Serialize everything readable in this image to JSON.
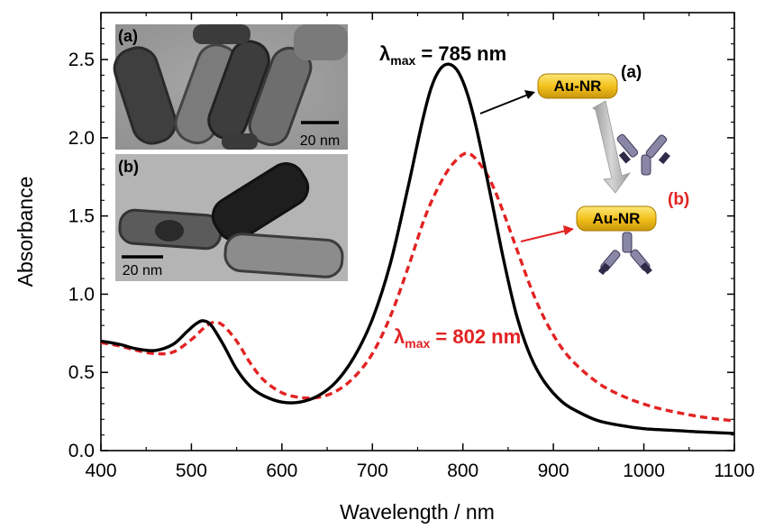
{
  "chart_data": {
    "type": "line",
    "xlabel": "Wavelength / nm",
    "ylabel": "Absorbance",
    "xlim": [
      400,
      1100
    ],
    "ylim": [
      0.0,
      2.8
    ],
    "x_ticks": [
      "400",
      "500",
      "600",
      "700",
      "800",
      "900",
      "1000",
      "1100"
    ],
    "y_ticks": [
      "0.0",
      "0.5",
      "1.0",
      "1.5",
      "2.0",
      "2.5"
    ],
    "grid": false,
    "series": [
      {
        "name": "(a)",
        "color": "#000000",
        "style": "solid",
        "points": [
          [
            400,
            0.7
          ],
          [
            420,
            0.68
          ],
          [
            440,
            0.65
          ],
          [
            460,
            0.64
          ],
          [
            480,
            0.68
          ],
          [
            495,
            0.76
          ],
          [
            505,
            0.81
          ],
          [
            513,
            0.83
          ],
          [
            522,
            0.8
          ],
          [
            535,
            0.68
          ],
          [
            550,
            0.52
          ],
          [
            565,
            0.41
          ],
          [
            580,
            0.35
          ],
          [
            600,
            0.31
          ],
          [
            620,
            0.31
          ],
          [
            640,
            0.35
          ],
          [
            660,
            0.44
          ],
          [
            680,
            0.6
          ],
          [
            700,
            0.84
          ],
          [
            720,
            1.2
          ],
          [
            740,
            1.7
          ],
          [
            755,
            2.1
          ],
          [
            765,
            2.32
          ],
          [
            775,
            2.44
          ],
          [
            785,
            2.47
          ],
          [
            795,
            2.42
          ],
          [
            805,
            2.28
          ],
          [
            815,
            2.06
          ],
          [
            830,
            1.65
          ],
          [
            845,
            1.22
          ],
          [
            860,
            0.85
          ],
          [
            875,
            0.6
          ],
          [
            890,
            0.44
          ],
          [
            910,
            0.31
          ],
          [
            930,
            0.24
          ],
          [
            950,
            0.19
          ],
          [
            975,
            0.16
          ],
          [
            1000,
            0.14
          ],
          [
            1030,
            0.13
          ],
          [
            1060,
            0.12
          ],
          [
            1100,
            0.11
          ]
        ]
      },
      {
        "name": "(b)",
        "color": "#e32222",
        "style": "dashed",
        "points": [
          [
            400,
            0.69
          ],
          [
            420,
            0.67
          ],
          [
            440,
            0.64
          ],
          [
            460,
            0.62
          ],
          [
            480,
            0.63
          ],
          [
            500,
            0.71
          ],
          [
            515,
            0.79
          ],
          [
            525,
            0.82
          ],
          [
            535,
            0.8
          ],
          [
            550,
            0.7
          ],
          [
            565,
            0.56
          ],
          [
            580,
            0.45
          ],
          [
            600,
            0.37
          ],
          [
            620,
            0.34
          ],
          [
            640,
            0.34
          ],
          [
            660,
            0.38
          ],
          [
            680,
            0.47
          ],
          [
            700,
            0.62
          ],
          [
            720,
            0.86
          ],
          [
            740,
            1.18
          ],
          [
            760,
            1.52
          ],
          [
            780,
            1.76
          ],
          [
            795,
            1.87
          ],
          [
            805,
            1.9
          ],
          [
            815,
            1.86
          ],
          [
            830,
            1.73
          ],
          [
            845,
            1.52
          ],
          [
            860,
            1.28
          ],
          [
            880,
            0.97
          ],
          [
            900,
            0.74
          ],
          [
            920,
            0.58
          ],
          [
            950,
            0.43
          ],
          [
            980,
            0.34
          ],
          [
            1010,
            0.28
          ],
          [
            1040,
            0.24
          ],
          [
            1070,
            0.21
          ],
          [
            1100,
            0.19
          ]
        ]
      }
    ],
    "annotations": {
      "lambda_a_sym": "λ",
      "lambda_a_sub": "max",
      "lambda_a_value": " = 785 nm",
      "lambda_b_sym": "λ",
      "lambda_b_sub": "max",
      "lambda_b_value": " = 802 nm"
    }
  },
  "inset": {
    "tem_a_label": "(a)",
    "tem_a_scale": "20 nm",
    "tem_b_label": "(b)",
    "tem_b_scale": "20 nm"
  },
  "schematic": {
    "rod_a_text": "Au-NR",
    "rod_a_tag": "(a)",
    "rod_b_text": "Au-NR",
    "rod_b_tag": "(b)"
  },
  "colors": {
    "series_a": "#000000",
    "series_b": "#e32222",
    "rod_fill": "#f3c21d",
    "antibody": "#8a86a6",
    "arrow_grey": "#b3b3b3"
  }
}
